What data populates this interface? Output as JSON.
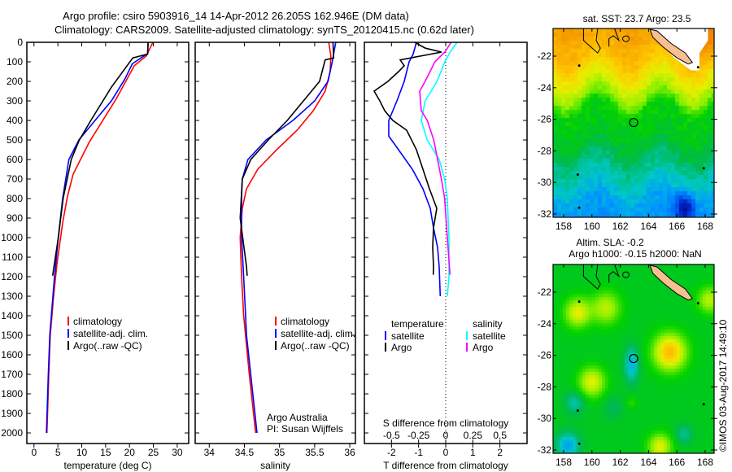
{
  "title": {
    "line1": "Argo profile: csiro 5903916_14 14-Apr-2012 26.205S 162.946E (DM data)",
    "line2": "Climatology: CARS2009. Satellite-adjusted climatology: synTS_20120415.nc (0.62d later)"
  },
  "colors": {
    "climatology": "#ff0000",
    "satellite": "#0000ff",
    "argo": "#000000",
    "sal_satellite": "#00ffff",
    "sal_argo": "#ff00ff"
  },
  "chart_data": {
    "type": "line",
    "depth_axis": {
      "label": "",
      "ticks": [
        "0",
        "100",
        "200",
        "300",
        "400",
        "500",
        "600",
        "700",
        "800",
        "900",
        "1000",
        "1100",
        "1200",
        "1300",
        "1400",
        "1500",
        "1600",
        "1700",
        "1800",
        "1900",
        "2000"
      ],
      "ylim": [
        0,
        2058
      ],
      "inverted": true
    },
    "panels": [
      {
        "id": "temperature",
        "xlabel": "temperature (deg C)",
        "xlim": [
          -1.5,
          32.4
        ],
        "xticks": [
          "0",
          "5",
          "10",
          "15",
          "20",
          "25",
          "30"
        ],
        "legend": [
          "climatology",
          "satellite-adj. clim.",
          "Argo(..raw -QC)"
        ],
        "series": [
          {
            "name": "climatology",
            "color": "#ff0000",
            "points": [
              [
                0,
                24.9
              ],
              [
                70,
                23.5
              ],
              [
                120,
                21
              ],
              [
                290,
                17.2
              ],
              [
                510,
                11.6
              ],
              [
                675,
                8.2
              ],
              [
                790,
                7.0
              ],
              [
                925,
                6.0
              ],
              [
                1135,
                4.8
              ],
              [
                1300,
                4.1
              ],
              [
                1500,
                3.4
              ],
              [
                1700,
                3.1
              ],
              [
                2000,
                2.7
              ]
            ]
          },
          {
            "name": "satellite-adj. clim.",
            "color": "#0000ff",
            "points": [
              [
                0,
                23.9
              ],
              [
                60,
                23.8
              ],
              [
                70,
                23.0
              ],
              [
                110,
                20.6
              ],
              [
                190,
                19.0
              ],
              [
                300,
                16.2
              ],
              [
                400,
                12.8
              ],
              [
                500,
                9.4
              ],
              [
                600,
                7.3
              ],
              [
                800,
                6.0
              ],
              [
                1000,
                5.1
              ],
              [
                1200,
                4.3
              ],
              [
                1500,
                3.3
              ],
              [
                1700,
                3.0
              ],
              [
                2000,
                2.6
              ]
            ]
          },
          {
            "name": "Argo(..raw -QC)",
            "color": "#000000",
            "points": [
              [
                0,
                23.9
              ],
              [
                60,
                23.8
              ],
              [
                80,
                20.7
              ],
              [
                230,
                16.2
              ],
              [
                400,
                11.9
              ],
              [
                500,
                9.5
              ],
              [
                600,
                7.8
              ],
              [
                800,
                6.1
              ],
              [
                1000,
                5.1
              ],
              [
                1195,
                3.9
              ]
            ]
          }
        ]
      },
      {
        "id": "salinity",
        "xlabel": "salinity",
        "xlim": [
          33.8,
          36.08
        ],
        "xticks": [
          "34",
          "34.5",
          "35",
          "35.5",
          "36"
        ],
        "legend": [
          "climatology",
          "satellite-adj. clim.",
          "Argo(..raw -QC)"
        ],
        "annotation": [
          "Argo Australia",
          "PI: Susan Wijffels"
        ],
        "series": [
          {
            "name": "climatology",
            "color": "#ff0000",
            "points": [
              [
                0,
                35.7
              ],
              [
                70,
                35.73
              ],
              [
                150,
                35.72
              ],
              [
                250,
                35.65
              ],
              [
                350,
                35.48
              ],
              [
                450,
                35.25
              ],
              [
                550,
                34.96
              ],
              [
                650,
                34.69
              ],
              [
                750,
                34.53
              ],
              [
                850,
                34.47
              ],
              [
                1000,
                34.44
              ],
              [
                1200,
                34.46
              ],
              [
                1400,
                34.49
              ],
              [
                1700,
                34.57
              ],
              [
                2000,
                34.66
              ]
            ]
          },
          {
            "name": "satellite-adj. clim.",
            "color": "#0000ff",
            "points": [
              [
                0,
                35.8
              ],
              [
                100,
                35.75
              ],
              [
                200,
                35.69
              ],
              [
                300,
                35.5
              ],
              [
                400,
                35.19
              ],
              [
                500,
                34.81
              ],
              [
                600,
                34.55
              ],
              [
                700,
                34.47
              ],
              [
                800,
                34.46
              ],
              [
                1000,
                34.46
              ],
              [
                1200,
                34.49
              ],
              [
                1500,
                34.53
              ],
              [
                2000,
                34.68
              ]
            ]
          },
          {
            "name": "Argo(..raw -QC)",
            "color": "#000000",
            "points": [
              [
                0,
                35.76
              ],
              [
                80,
                35.77
              ],
              [
                90,
                35.65
              ],
              [
                200,
                35.57
              ],
              [
                300,
                35.34
              ],
              [
                400,
                35.11
              ],
              [
                500,
                34.84
              ],
              [
                600,
                34.59
              ],
              [
                700,
                34.47
              ],
              [
                900,
                34.44
              ],
              [
                1150,
                34.53
              ],
              [
                1195,
                34.54
              ]
            ]
          }
        ]
      },
      {
        "id": "difference",
        "xlabel": "T difference from climatology",
        "xlabel_top": "S difference from climatology",
        "xlim": [
          -3,
          3
        ],
        "xticks": [
          "-2",
          "-1",
          "0",
          "1",
          "2"
        ],
        "s_xticks": [
          "-0.5",
          "-0.25",
          "0",
          "0.25",
          "0.5"
        ],
        "s_xlim": [
          -0.75,
          0.75
        ],
        "legend": {
          "temperature": "temperature",
          "salinity": "salinity",
          "t_items": [
            "satellite",
            "Argo"
          ],
          "s_items": [
            "satellite",
            "Argo"
          ]
        },
        "series": [
          {
            "name": "temperature satellite",
            "var": "T",
            "color": "#0000ff",
            "points": [
              [
                0,
                -1.08
              ],
              [
                60,
                -1.2
              ],
              [
                100,
                -1.35
              ],
              [
                150,
                -1.44
              ],
              [
                200,
                -1.53
              ],
              [
                300,
                -1.8
              ],
              [
                400,
                -2.1
              ],
              [
                480,
                -2.1
              ],
              [
                550,
                -1.74
              ],
              [
                650,
                -1.23
              ],
              [
                750,
                -0.84
              ],
              [
                850,
                -0.57
              ],
              [
                950,
                -0.45
              ],
              [
                1050,
                -0.3
              ],
              [
                1150,
                -0.24
              ],
              [
                1300,
                -0.2
              ]
            ]
          },
          {
            "name": "temperature Argo",
            "var": "T",
            "color": "#000000",
            "points": [
              [
                0,
                -1.14
              ],
              [
                30,
                -0.75
              ],
              [
                50,
                -0.15
              ],
              [
                90,
                -1.68
              ],
              [
                120,
                -1.53
              ],
              [
                150,
                -1.74
              ],
              [
                200,
                -2.13
              ],
              [
                250,
                -2.64
              ],
              [
                300,
                -2.43
              ],
              [
                350,
                -2.25
              ],
              [
                400,
                -1.95
              ],
              [
                450,
                -1.44
              ],
              [
                550,
                -1.08
              ],
              [
                650,
                -0.84
              ],
              [
                750,
                -0.6
              ],
              [
                850,
                -0.33
              ],
              [
                950,
                -0.45
              ],
              [
                1050,
                -0.48
              ],
              [
                1150,
                -0.45
              ],
              [
                1190,
                -0.46
              ]
            ]
          },
          {
            "name": "salinity satellite",
            "var": "S",
            "color": "#00ffff",
            "points": [
              [
                0,
                0.105
              ],
              [
                50,
                0.04
              ],
              [
                100,
                -0.008
              ],
              [
                200,
                -0.08
              ],
              [
                300,
                -0.19
              ],
              [
                400,
                -0.225
              ],
              [
                500,
                -0.17
              ],
              [
                600,
                -0.06
              ],
              [
                700,
                -0.01
              ],
              [
                800,
                0.015
              ],
              [
                1000,
                0.03
              ],
              [
                1200,
                0.03
              ],
              [
                1300,
                0.015
              ]
            ]
          },
          {
            "name": "salinity Argo",
            "var": "S",
            "color": "#ff00ff",
            "points": [
              [
                0,
                0.05
              ],
              [
                50,
                -0.008
              ],
              [
                100,
                -0.1
              ],
              [
                200,
                -0.19
              ],
              [
                250,
                -0.24
              ],
              [
                350,
                -0.225
              ],
              [
                400,
                -0.17
              ],
              [
                500,
                -0.11
              ],
              [
                600,
                -0.075
              ],
              [
                700,
                -0.04
              ],
              [
                800,
                -0.01
              ],
              [
                1000,
                0.015
              ],
              [
                1190,
                0.04
              ]
            ]
          }
        ]
      }
    ],
    "maps": [
      {
        "id": "sst",
        "title": "sat. SST: 23.7 Argo: 23.5",
        "lon_ticks": [
          "158",
          "160",
          "162",
          "164",
          "166",
          "168"
        ],
        "lat_ticks": [
          "-22",
          "-24",
          "-26",
          "-28",
          "-30",
          "-32"
        ],
        "argo_position": [
          162.946,
          -26.205
        ]
      },
      {
        "id": "sla",
        "title1": "Altim. SLA: -0.2",
        "title2": "Argo h1000: -0.15 h2000: NaN",
        "lon_ticks": [
          "158",
          "160",
          "162",
          "164",
          "166",
          "168"
        ],
        "lat_ticks": [
          "-22",
          "-24",
          "-26",
          "-28",
          "-30",
          "-32"
        ],
        "argo_position": [
          162.946,
          -26.205
        ]
      }
    ]
  },
  "credit": "©IMOS 03-Aug-2017 14:49:10"
}
